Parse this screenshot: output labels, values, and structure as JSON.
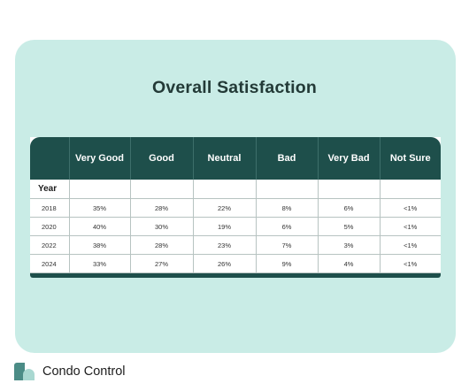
{
  "title": "Overall Satisfaction",
  "table": {
    "columns": [
      "Very Good",
      "Good",
      "Neutral",
      "Bad",
      "Very Bad",
      "Not Sure"
    ],
    "year_label": "Year",
    "rows": [
      {
        "year": "2018",
        "values": [
          "35%",
          "28%",
          "22%",
          "8%",
          "6%",
          "<1%"
        ]
      },
      {
        "year": "2020",
        "values": [
          "40%",
          "30%",
          "19%",
          "6%",
          "5%",
          "<1%"
        ]
      },
      {
        "year": "2022",
        "values": [
          "38%",
          "28%",
          "23%",
          "7%",
          "3%",
          "<1%"
        ]
      },
      {
        "year": "2024",
        "values": [
          "33%",
          "27%",
          "26%",
          "9%",
          "4%",
          "<1%"
        ]
      }
    ]
  },
  "brand": {
    "name": "Condo Control",
    "icon": "condo-control-logo-icon"
  },
  "colors": {
    "card_background": "#c9ece6",
    "header_background": "#1e4f4b",
    "title_text": "#233a37"
  }
}
